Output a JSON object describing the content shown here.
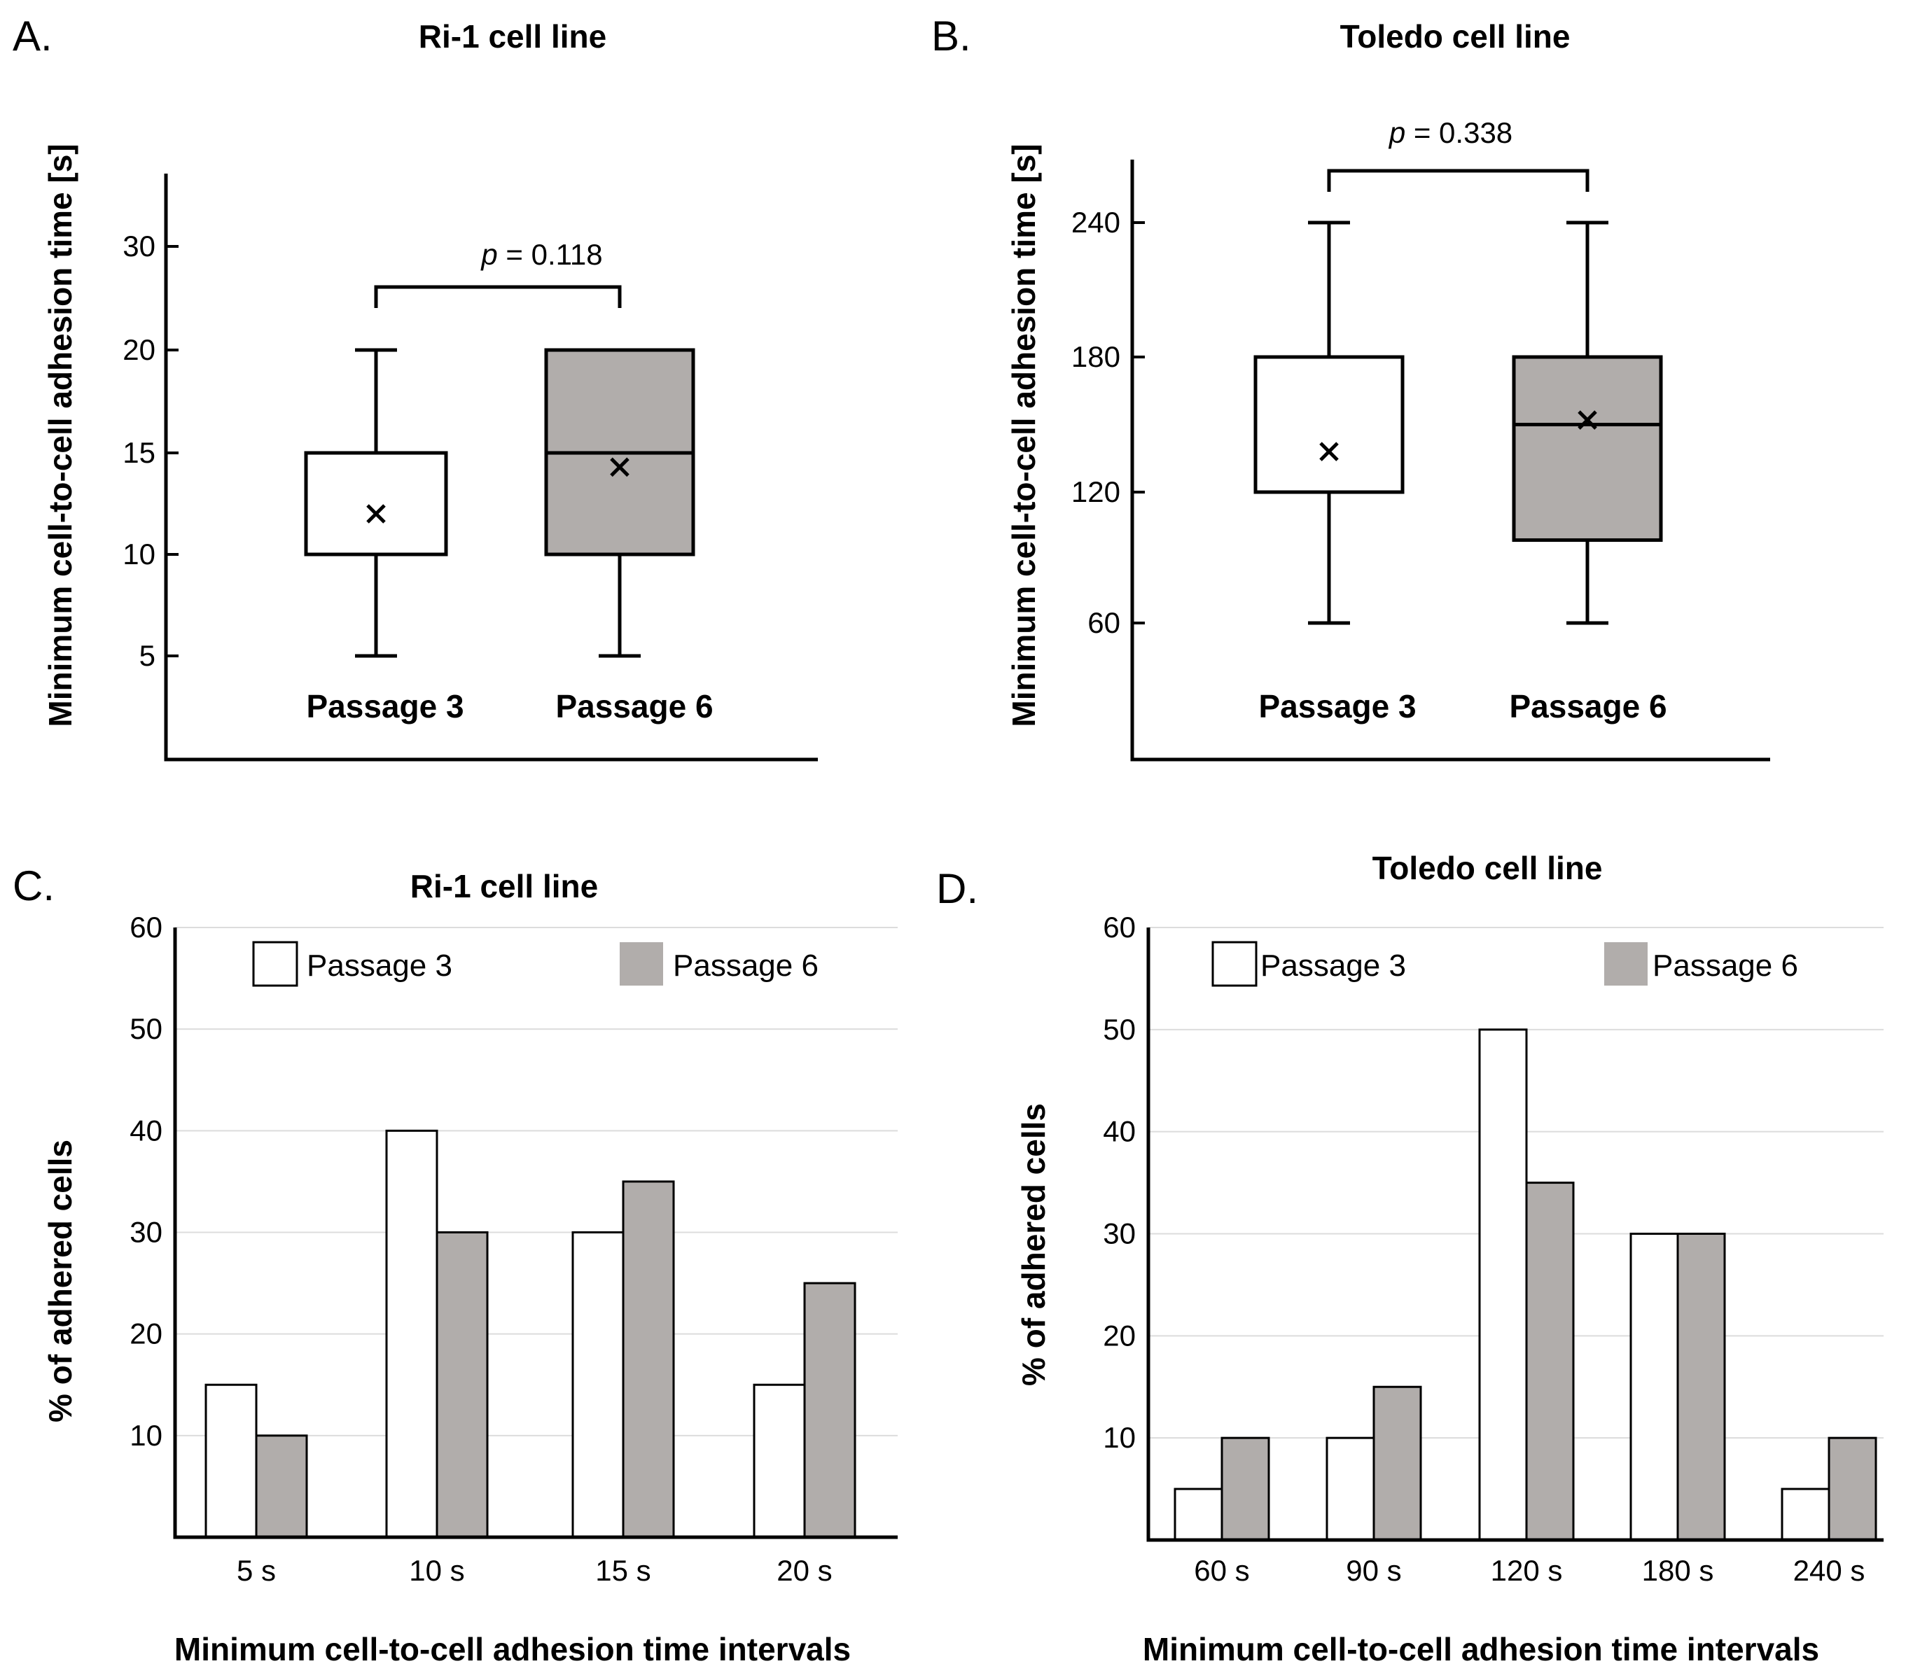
{
  "colors": {
    "passage3_fill": "#ffffff",
    "passage6_fill": "#b1adab",
    "stroke": "#000000",
    "grid": "#dcdcdc"
  },
  "chart_data": [
    {
      "panel": "A.",
      "type": "box",
      "title": "Ri-1 cell line",
      "ylabel": "Minimum cell-to-cell adhesion time [s]",
      "xlabel": "",
      "yticks": [
        5,
        10,
        15,
        20,
        30
      ],
      "ylim": [
        0,
        35
      ],
      "series": [
        {
          "name": "Passage 3",
          "min": 5,
          "q1": 10,
          "median": 10,
          "q3": 15,
          "max": 20,
          "mean": 12
        },
        {
          "name": "Passage 6",
          "min": 5,
          "q1": 10,
          "median": 15,
          "q3": 20,
          "max": 20,
          "mean": 14.3
        }
      ],
      "annotation": {
        "p_symbol": "p",
        "p_text": " = 0.118"
      }
    },
    {
      "panel": "B.",
      "type": "box",
      "title": "Toledo cell line",
      "ylabel": "Minimum cell-to-cell adhesion time [s]",
      "xlabel": "",
      "yticks": [
        60,
        120,
        180,
        240
      ],
      "ylim": [
        0,
        270
      ],
      "series": [
        {
          "name": "Passage 3",
          "min": 60,
          "q1": 120,
          "median": 120,
          "q3": 180,
          "max": 240,
          "mean": 138
        },
        {
          "name": "Passage 6",
          "min": 60,
          "q1": 98,
          "median": 150,
          "q3": 180,
          "max": 240,
          "mean": 152
        }
      ],
      "annotation": {
        "p_symbol": "p",
        "p_text": " = 0.338"
      }
    },
    {
      "panel": "C.",
      "type": "bar",
      "title": "Ri-1 cell line",
      "ylabel": "% of adhered cells",
      "xlabel": "Minimum cell-to-cell adhesion time intervals",
      "categories": [
        "5 s",
        "10 s",
        "15 s",
        "20 s"
      ],
      "ylim": [
        0,
        60
      ],
      "yticks": [
        10,
        20,
        30,
        40,
        50,
        60
      ],
      "grid": true,
      "legend": "top",
      "series": [
        {
          "name": "Passage 3",
          "values": [
            15,
            40,
            30,
            15
          ]
        },
        {
          "name": "Passage 6",
          "values": [
            10,
            30,
            35,
            25
          ]
        }
      ]
    },
    {
      "panel": "D.",
      "type": "bar",
      "title": "Toledo cell line",
      "ylabel": "% of adhered cells",
      "xlabel": "Minimum cell-to-cell adhesion time intervals",
      "categories": [
        "60 s",
        "90 s",
        "120 s",
        "180 s",
        "240 s"
      ],
      "ylim": [
        0,
        60
      ],
      "yticks": [
        10,
        20,
        30,
        40,
        50,
        60
      ],
      "grid": true,
      "legend": "top",
      "series": [
        {
          "name": "Passage 3",
          "values": [
            5,
            10,
            50,
            30,
            5
          ]
        },
        {
          "name": "Passage 6",
          "values": [
            10,
            15,
            35,
            30,
            10
          ]
        }
      ]
    }
  ]
}
